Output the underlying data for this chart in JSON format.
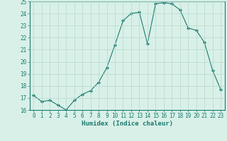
{
  "xlabel": "Humidex (Indice chaleur)",
  "x_values": [
    0,
    1,
    2,
    3,
    4,
    5,
    6,
    7,
    8,
    9,
    10,
    11,
    12,
    13,
    14,
    15,
    16,
    17,
    18,
    19,
    20,
    21,
    22,
    23
  ],
  "y_values": [
    17.2,
    16.7,
    16.8,
    16.4,
    16.0,
    16.8,
    17.3,
    17.6,
    18.3,
    19.5,
    21.4,
    23.4,
    24.0,
    24.1,
    21.5,
    24.8,
    24.9,
    24.8,
    24.3,
    22.8,
    22.6,
    21.6,
    19.3,
    17.7
  ],
  "line_color": "#1a7a6e",
  "marker": "D",
  "marker_size": 2,
  "bg_color": "#d8f0e8",
  "grid_color": "#b8d8cc",
  "ylim": [
    16,
    25
  ],
  "xlim": [
    -0.5,
    23.5
  ],
  "yticks": [
    16,
    17,
    18,
    19,
    20,
    21,
    22,
    23,
    24,
    25
  ],
  "xticks": [
    0,
    1,
    2,
    3,
    4,
    5,
    6,
    7,
    8,
    9,
    10,
    11,
    12,
    13,
    14,
    15,
    16,
    17,
    18,
    19,
    20,
    21,
    22,
    23
  ],
  "tick_fontsize": 5.5,
  "xlabel_fontsize": 6.5,
  "axis_color": "#1a7a6e",
  "spine_color": "#1a7a6e"
}
